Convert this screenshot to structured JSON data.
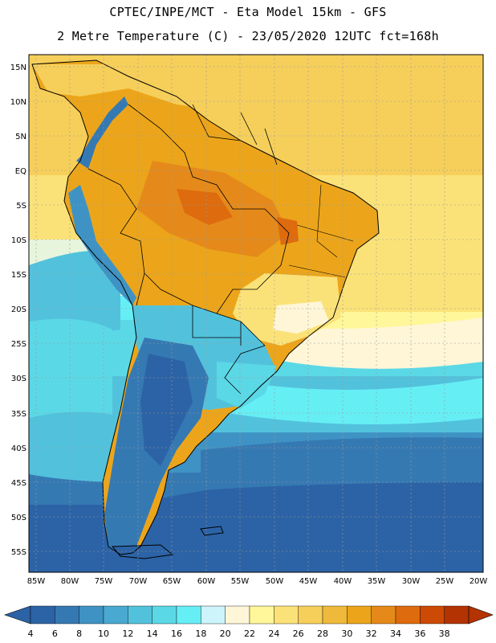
{
  "title_line1": "CPTEC/INPE/MCT -  Eta Model 15km - GFS",
  "title_line2": "2 Metre Temperature (C) - 23/05/2020 12UTC fct=168h",
  "lat_labels": [
    "15N",
    "10N",
    "5N",
    "EQ",
    "5S",
    "10S",
    "15S",
    "20S",
    "25S",
    "30S",
    "35S",
    "40S",
    "45S",
    "50S",
    "55S"
  ],
  "lon_labels": [
    "85W",
    "80W",
    "75W",
    "70W",
    "65W",
    "60W",
    "55W",
    "50W",
    "45W",
    "40W",
    "35W",
    "30W",
    "25W",
    "20W"
  ],
  "colorbar": {
    "levels": [
      "4",
      "6",
      "8",
      "10",
      "12",
      "14",
      "16",
      "18",
      "20",
      "22",
      "24",
      "26",
      "28",
      "30",
      "32",
      "34",
      "36",
      "38"
    ],
    "colors": [
      "#2c63a6",
      "#3579b3",
      "#3f93c4",
      "#4aa9d0",
      "#52c2dc",
      "#5bd8e6",
      "#66eef5",
      "#cdf4fb",
      "#fff6d8",
      "#fff79a",
      "#fbe278",
      "#f6cf5a",
      "#efb93c",
      "#eca51a",
      "#e58a1a",
      "#de6b0e",
      "#cc4a04",
      "#b33302"
    ]
  },
  "colors": {
    "ocean_cold": "#2c63a6",
    "ocean_mid": "#3f93c4",
    "ocean_cyan": "#5bd8e6",
    "ocean_warm": "#fbe278",
    "land_hot": "#eca51a",
    "land_andes": "#3579b3"
  }
}
